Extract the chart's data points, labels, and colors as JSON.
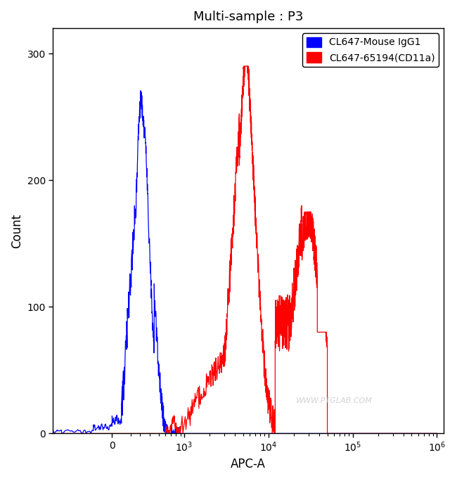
{
  "title": "Multi-sample : P3",
  "xlabel": "APC-A",
  "ylabel": "Count",
  "ylim": [
    0,
    320
  ],
  "yticks": [
    0,
    100,
    200,
    300
  ],
  "blue_color": "#0000FF",
  "red_color": "#FF0000",
  "legend_labels": [
    "CL647-Mouse IgG1",
    "CL647-65194(CD11a)"
  ],
  "watermark": "WWW.PTGLAB.COM",
  "background_color": "#FFFFFF",
  "title_fontsize": 13,
  "axis_label_fontsize": 12,
  "tick_fontsize": 10,
  "symlog_linthresh": 500,
  "symlog_linscale": 0.5
}
